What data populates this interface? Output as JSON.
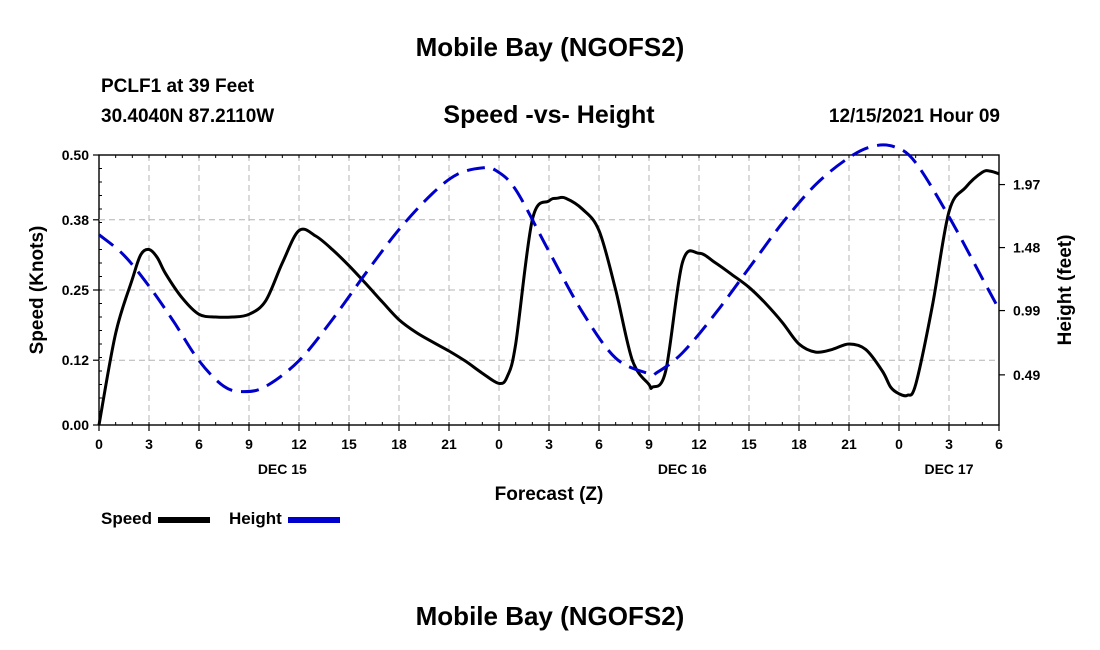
{
  "header": {
    "title": "Mobile Bay (NGOFS2)",
    "station": "PCLF1 at 39 Feet",
    "coords": "30.4040N  87.2110W",
    "subtitle": "Speed -vs- Height",
    "timestamp": "12/15/2021 Hour 09"
  },
  "footer": {
    "title": "Mobile Bay (NGOFS2)"
  },
  "legend": {
    "speed_label": "Speed",
    "height_label": "Height",
    "speed_color": "#000000",
    "height_color": "#0000cc"
  },
  "chart_data": {
    "type": "line",
    "title": "Speed -vs- Height",
    "xlabel": "Forecast (Z)",
    "ylabel": "Speed (Knots)",
    "y2label": "Height (feet)",
    "x_range": [
      0,
      54
    ],
    "ylim": [
      0,
      0.5
    ],
    "y2lim": [
      0.1,
      2.2
    ],
    "grid": true,
    "x_tick_positions": [
      0,
      3,
      6,
      9,
      12,
      15,
      18,
      21,
      24,
      27,
      30,
      33,
      36,
      39,
      42,
      45,
      48,
      51,
      54
    ],
    "x_tick_labels": [
      "0",
      "3",
      "6",
      "9",
      "12",
      "15",
      "18",
      "21",
      "0",
      "3",
      "6",
      "9",
      "12",
      "15",
      "18",
      "21",
      "0",
      "3",
      "6"
    ],
    "date_labels": [
      {
        "x": 11,
        "label": "DEC 15"
      },
      {
        "x": 35,
        "label": "DEC 16"
      },
      {
        "x": 51,
        "label": "DEC 17"
      }
    ],
    "y_ticks": [
      0.0,
      0.12,
      0.25,
      0.38,
      0.5
    ],
    "y_tick_labels": [
      "0.00",
      "0.12",
      "0.25",
      "0.38",
      "0.50"
    ],
    "y2_ticks": [
      0.49,
      0.99,
      1.48,
      1.97
    ],
    "y2_tick_labels": [
      "0.49",
      "0.99",
      "1.48",
      "1.97"
    ],
    "series": [
      {
        "name": "Speed",
        "axis": "left",
        "color": "#000000",
        "dash": "solid",
        "x": [
          0,
          1,
          2,
          2.5,
          3,
          3.5,
          4,
          5,
          6,
          7,
          8,
          9,
          10,
          11,
          12,
          13,
          14,
          15,
          16,
          17,
          18,
          19,
          20,
          21,
          22,
          23,
          24,
          24.5,
          25,
          26,
          27,
          27.5,
          28,
          29,
          30,
          31,
          32,
          33,
          33.2,
          34,
          35,
          36,
          37,
          38,
          39,
          40,
          41,
          42,
          43,
          44,
          45,
          46,
          47,
          47.5,
          48,
          48.5,
          49,
          50,
          51,
          52,
          53,
          53.5,
          54
        ],
        "values": [
          0.0,
          0.17,
          0.27,
          0.315,
          0.325,
          0.31,
          0.28,
          0.235,
          0.205,
          0.2,
          0.2,
          0.205,
          0.23,
          0.3,
          0.36,
          0.35,
          0.325,
          0.295,
          0.262,
          0.228,
          0.195,
          0.172,
          0.154,
          0.137,
          0.118,
          0.096,
          0.077,
          0.09,
          0.15,
          0.38,
          0.415,
          0.42,
          0.42,
          0.4,
          0.36,
          0.25,
          0.12,
          0.075,
          0.07,
          0.1,
          0.3,
          0.318,
          0.3,
          0.278,
          0.255,
          0.225,
          0.19,
          0.15,
          0.135,
          0.14,
          0.15,
          0.14,
          0.1,
          0.07,
          0.058,
          0.055,
          0.075,
          0.22,
          0.395,
          0.44,
          0.468,
          0.47,
          0.465
        ]
      },
      {
        "name": "Height",
        "axis": "right",
        "color": "#0000cc",
        "dash": "dashed",
        "x": [
          0,
          1.5,
          3,
          4.5,
          6,
          7.5,
          8.7,
          10,
          12,
          14,
          16,
          18,
          20,
          21.5,
          23,
          23.8,
          25,
          27,
          29,
          31,
          33,
          33.5,
          35,
          37,
          39,
          41,
          43,
          45,
          46.5,
          47.8,
          49,
          51,
          53,
          54
        ],
        "values": [
          1.58,
          1.42,
          1.18,
          0.9,
          0.6,
          0.4,
          0.36,
          0.4,
          0.6,
          0.92,
          1.28,
          1.62,
          1.9,
          2.05,
          2.1,
          2.08,
          1.93,
          1.45,
          0.98,
          0.62,
          0.5,
          0.51,
          0.66,
          0.97,
          1.32,
          1.67,
          1.97,
          2.18,
          2.27,
          2.26,
          2.14,
          1.72,
          1.24,
          1.0
        ]
      }
    ]
  }
}
